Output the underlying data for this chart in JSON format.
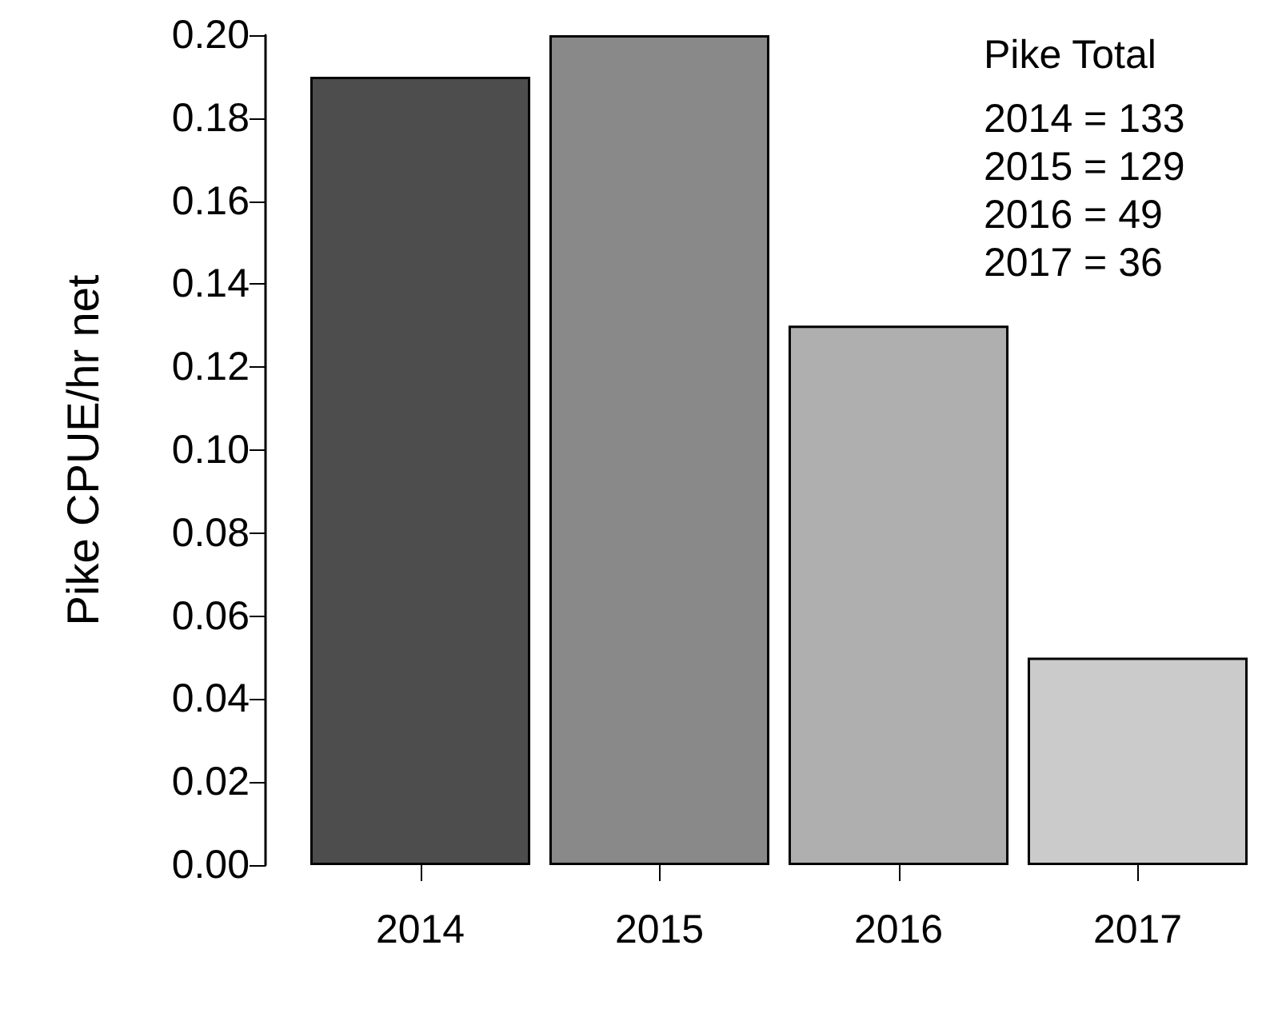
{
  "chart_data": {
    "type": "bar",
    "ylabel": "Pike CPUE/hr net",
    "categories": [
      "2014",
      "2015",
      "2016",
      "2017"
    ],
    "values": [
      0.19,
      0.2,
      0.13,
      0.05
    ],
    "colors": [
      "#4d4d4d",
      "#898989",
      "#afafaf",
      "#cbcbcb"
    ],
    "ylim": [
      0,
      0.2
    ],
    "yticks": [
      {
        "value": 0,
        "label": "0.00"
      },
      {
        "value": 0.02,
        "label": "0.02"
      },
      {
        "value": 0.04,
        "label": "0.04"
      },
      {
        "value": 0.06,
        "label": "0.06"
      },
      {
        "value": 0.08,
        "label": "0.08"
      },
      {
        "value": 0.1,
        "label": "0.10"
      },
      {
        "value": 0.12,
        "label": "0.12"
      },
      {
        "value": 0.14,
        "label": "0.14"
      },
      {
        "value": 0.16,
        "label": "0.16"
      },
      {
        "value": 0.18,
        "label": "0.18"
      },
      {
        "value": 0.2,
        "label": "0.20"
      }
    ],
    "annotations": [
      "Pike Total",
      "2014 = 133",
      "2015 = 129",
      "2016 = 49",
      "2017 = 36"
    ]
  }
}
